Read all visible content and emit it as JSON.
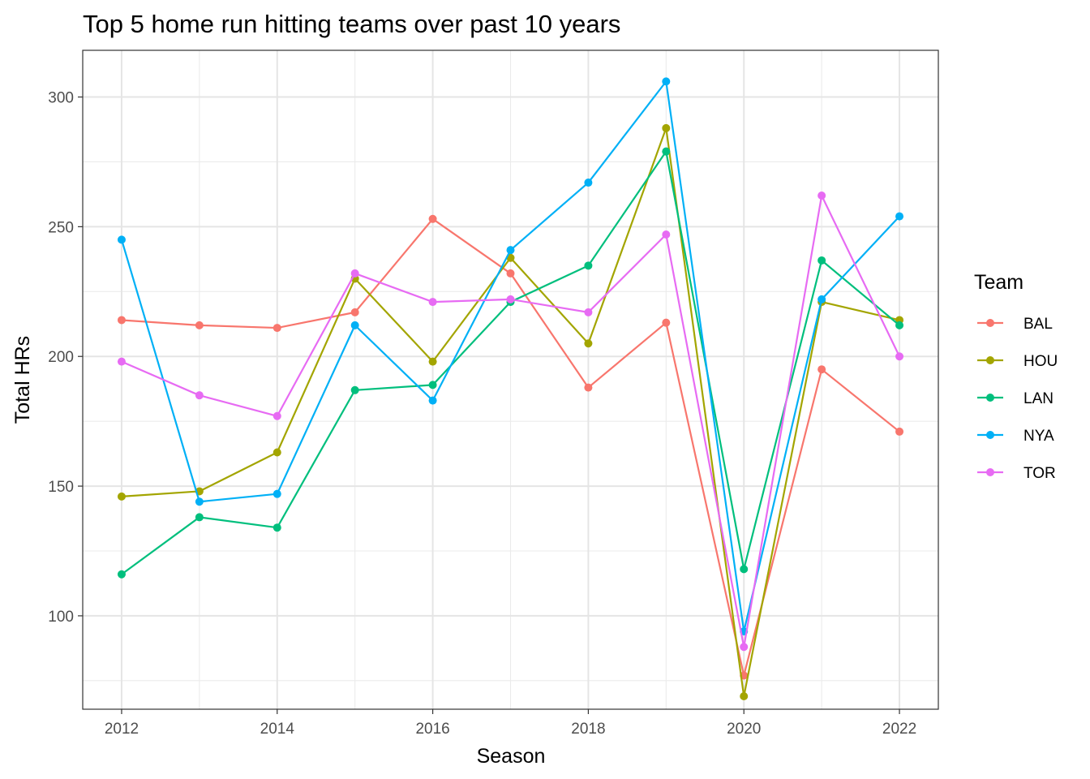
{
  "chart_data": {
    "type": "line",
    "title": "Top 5 home run hitting teams over past 10 years",
    "xlabel": "Season",
    "ylabel": "Total HRs",
    "x": [
      2012,
      2013,
      2014,
      2015,
      2016,
      2017,
      2018,
      2019,
      2020,
      2021,
      2022
    ],
    "x_ticks": [
      2012,
      2014,
      2016,
      2018,
      2020,
      2022
    ],
    "y_ticks": [
      100,
      150,
      200,
      250,
      300
    ],
    "xlim": [
      2011.5,
      2022.5
    ],
    "ylim": [
      64,
      318
    ],
    "grid": true,
    "legend": {
      "title": "Team",
      "position": "right"
    },
    "series": [
      {
        "name": "BAL",
        "color": "#F8766D",
        "values": [
          214,
          212,
          211,
          217,
          253,
          232,
          188,
          213,
          77,
          195,
          171
        ]
      },
      {
        "name": "HOU",
        "color": "#A3A500",
        "values": [
          146,
          148,
          163,
          230,
          198,
          238,
          205,
          288,
          69,
          221,
          214
        ]
      },
      {
        "name": "LAN",
        "color": "#00BF7D",
        "values": [
          116,
          138,
          134,
          187,
          189,
          221,
          235,
          279,
          118,
          237,
          212
        ]
      },
      {
        "name": "NYA",
        "color": "#00B0F6",
        "values": [
          245,
          144,
          147,
          212,
          183,
          241,
          267,
          306,
          94,
          222,
          254
        ]
      },
      {
        "name": "TOR",
        "color": "#E76BF3",
        "values": [
          198,
          185,
          177,
          232,
          221,
          222,
          217,
          247,
          88,
          262,
          200
        ]
      }
    ]
  }
}
